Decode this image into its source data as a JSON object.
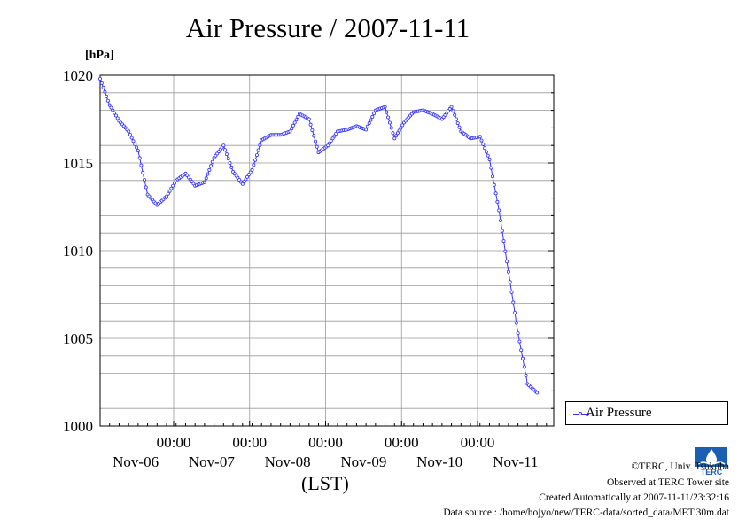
{
  "chart_data": {
    "type": "line",
    "title": "Air Pressure / 2007-11-11",
    "ylabel": "[hPa]",
    "xlabel": "(LST)",
    "ylim": [
      1000,
      1020
    ],
    "yticks": [
      "1000",
      "1005",
      "1010",
      "1015",
      "1020"
    ],
    "xtick_times": [
      "00:00",
      "00:00",
      "00:00",
      "00:00",
      "00:00"
    ],
    "xtick_dates": [
      "Nov-06",
      "Nov-07",
      "Nov-08",
      "Nov-09",
      "Nov-10",
      "Nov-11"
    ],
    "legend_position": "right",
    "grid": true,
    "color": "#3333ff",
    "series": [
      {
        "name": "Air Pressure",
        "x": [
          0,
          3,
          6,
          9,
          12,
          15,
          18,
          21,
          24,
          27,
          30,
          33,
          36,
          39,
          42,
          45,
          48,
          51,
          54,
          57,
          60,
          63,
          66,
          69,
          72,
          75,
          78,
          81,
          84,
          87,
          90,
          93,
          96,
          99,
          102,
          105,
          108,
          111,
          114,
          117,
          120,
          123,
          126,
          129,
          132,
          135,
          138
        ],
        "values": [
          1019.8,
          1018.3,
          1017.4,
          1016.8,
          1015.7,
          1013.2,
          1012.6,
          1013.1,
          1014.0,
          1014.4,
          1013.7,
          1013.9,
          1015.3,
          1016.0,
          1014.5,
          1013.8,
          1014.6,
          1016.3,
          1016.6,
          1016.6,
          1016.8,
          1017.8,
          1017.5,
          1015.6,
          1016.0,
          1016.8,
          1016.9,
          1017.1,
          1016.9,
          1018.0,
          1018.2,
          1016.4,
          1017.3,
          1017.9,
          1018.0,
          1017.8,
          1017.5,
          1018.2,
          1016.8,
          1016.4,
          1016.5,
          1015.2,
          1012.3,
          1008.8,
          1005.3,
          1002.4,
          1001.9
        ]
      }
    ]
  },
  "legend": {
    "label": "Air Pressure"
  },
  "credits": {
    "copyright": "©TERC, Univ. Tsukuba",
    "observed": "Observed at TERC Tower site",
    "created": "Created Automatically at 2007-11-11/23:32:16",
    "source": "Data source : /home/hojyo/new/TERC-data/sorted_data/MET.30m.dat"
  },
  "logo": {
    "text": "TERC"
  }
}
